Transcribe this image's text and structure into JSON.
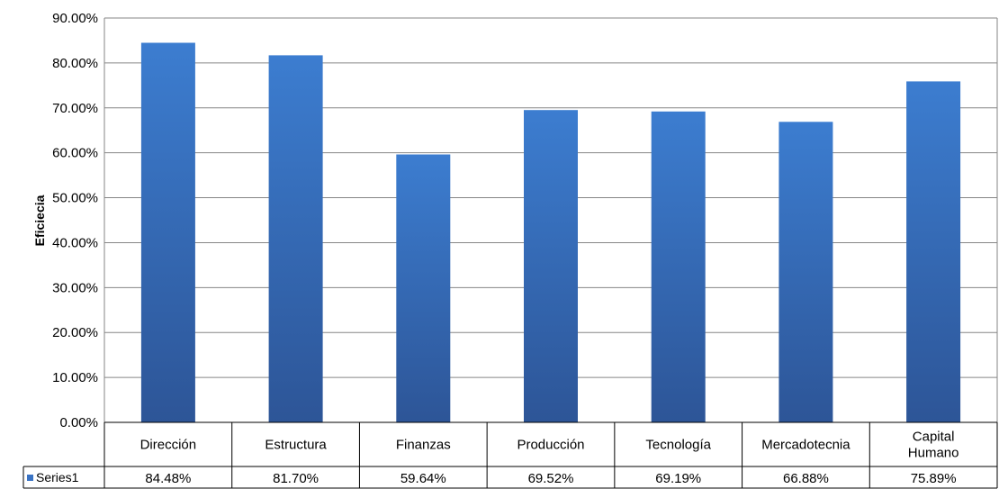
{
  "chart_data": {
    "type": "bar",
    "ylabel": "Eficiecia",
    "ylim": [
      0,
      90
    ],
    "yticks": [
      0,
      10,
      20,
      30,
      40,
      50,
      60,
      70,
      80,
      90
    ],
    "ytick_labels": [
      "0.00%",
      "10.00%",
      "20.00%",
      "30.00%",
      "40.00%",
      "50.00%",
      "60.00%",
      "70.00%",
      "80.00%",
      "90.00%"
    ],
    "categories": [
      [
        "Dirección"
      ],
      [
        "Estructura"
      ],
      [
        "Finanzas"
      ],
      [
        "Producción"
      ],
      [
        "Tecnología"
      ],
      [
        "Mercadotecnia"
      ],
      [
        "Capital",
        "Humano"
      ]
    ],
    "series": [
      {
        "name": "Series1",
        "values": [
          84.48,
          81.7,
          59.64,
          69.52,
          69.19,
          66.88,
          75.89
        ],
        "value_labels": [
          "84.48%",
          "81.70%",
          "59.64%",
          "69.52%",
          "69.19%",
          "66.88%",
          "75.89%"
        ]
      }
    ],
    "grid": true,
    "legend": "data-table",
    "colors": {
      "bar_top": "#3C7DD0",
      "bar_bottom": "#2D5597",
      "gridline": "#868686",
      "legend_key": "#3A73C4"
    }
  }
}
